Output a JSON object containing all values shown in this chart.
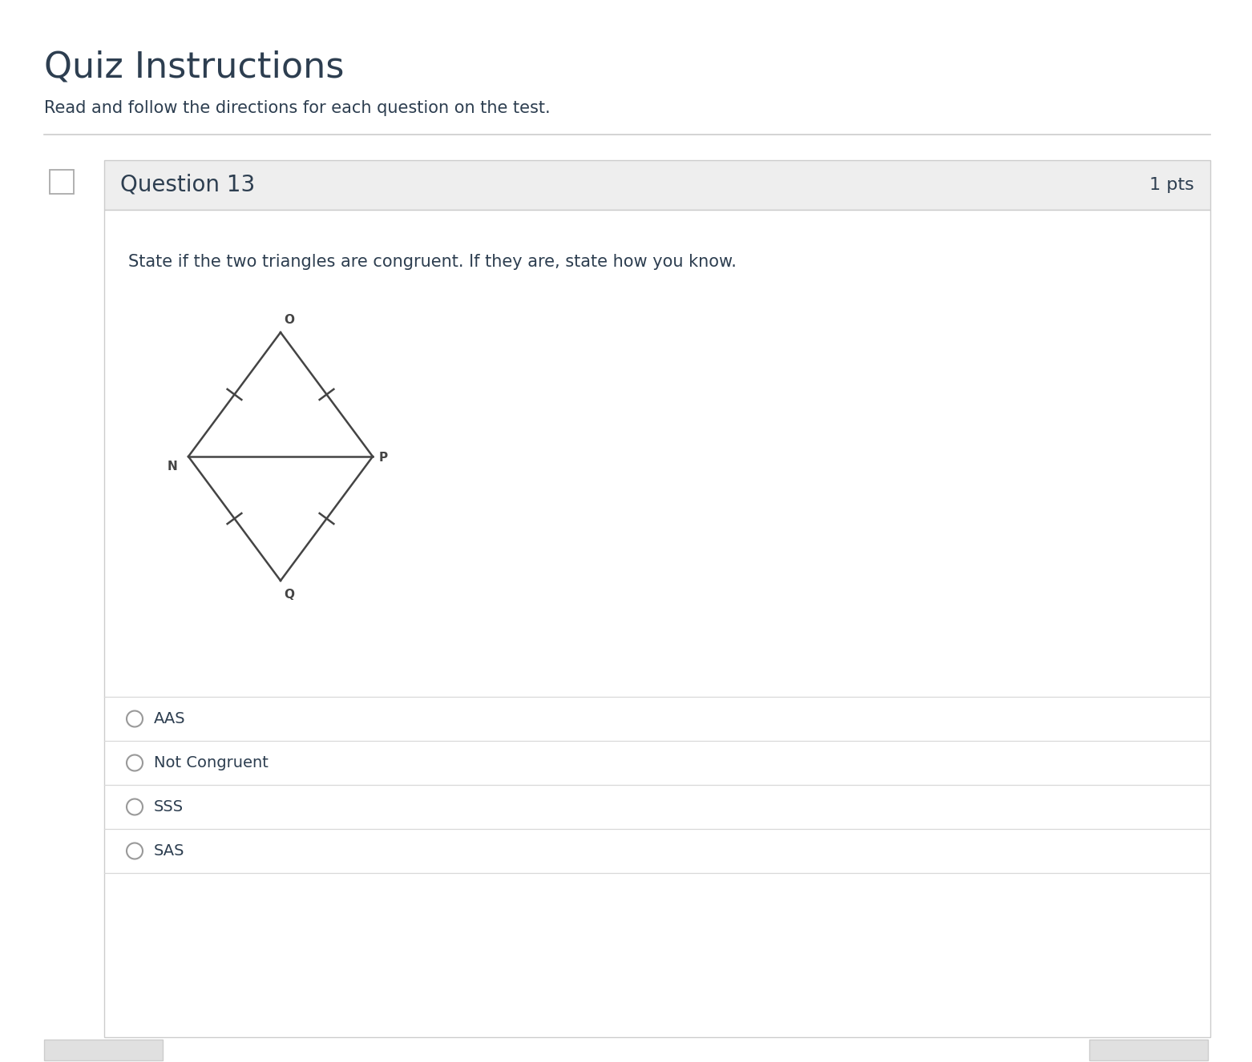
{
  "title": "Quiz Instructions",
  "subtitle": "Read and follow the directions for each question on the test.",
  "question_header": "Question 13",
  "pts": "1 pts",
  "question_text": "State if the two triangles are congruent. If they are, state how you know.",
  "options": [
    "AAS",
    "Not Congruent",
    "SSS",
    "SAS"
  ],
  "bg_color": "#ffffff",
  "header_bg": "#eeeeee",
  "border_color": "#cccccc",
  "text_color": "#2d3e50",
  "title_color": "#2d3e50",
  "divider_color": "#d8d8d8",
  "triangle_color": "#444444",
  "fig_width": 15.62,
  "fig_height": 13.26,
  "dpi": 100
}
